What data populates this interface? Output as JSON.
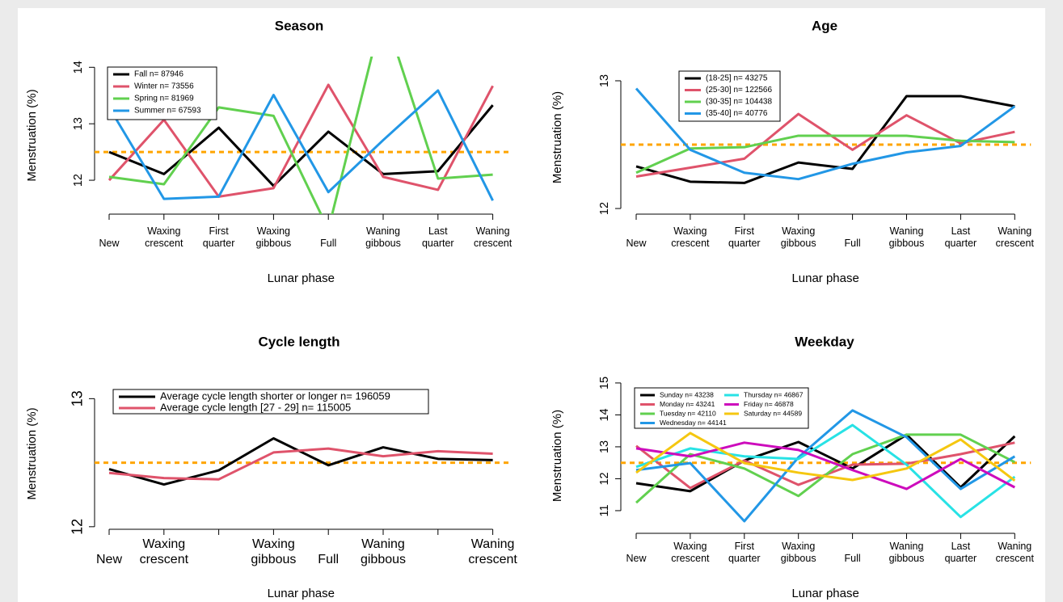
{
  "chart_data": [
    {
      "type": "line",
      "title": "Season",
      "xlabel": "Lunar phase",
      "ylabel": "Menstruation (%)",
      "categories": [
        "New",
        "Waxing crescent",
        "First quarter",
        "Waxing gibbous",
        "Full",
        "Waning gibbous",
        "Last quarter",
        "Waning crescent"
      ],
      "ylim": [
        11.4,
        14.19
      ],
      "yticks": [
        12,
        13,
        14
      ],
      "hline": 12.5,
      "hline_color": "#ffa500",
      "legend_position": "top-left",
      "series": [
        {
          "name": "Fall n= 87946",
          "color": "#000000",
          "values": [
            12.5,
            12.11,
            12.93,
            11.9,
            12.86,
            12.11,
            12.16,
            13.33
          ]
        },
        {
          "name": "Winter n= 73556",
          "color": "#df536b",
          "values": [
            12.0,
            13.07,
            11.71,
            11.86,
            13.69,
            12.06,
            11.83,
            13.67
          ]
        },
        {
          "name": "Spring n= 81969",
          "color": "#61d04f",
          "values": [
            12.06,
            11.93,
            13.29,
            13.14,
            11.13,
            15.0,
            12.03,
            12.1
          ]
        },
        {
          "name": "Summer n= 67593",
          "color": "#2297e6",
          "values": [
            13.29,
            11.67,
            11.71,
            13.51,
            11.79,
            12.71,
            13.59,
            11.64
          ]
        }
      ]
    },
    {
      "type": "line",
      "title": "Age",
      "xlabel": "Lunar phase",
      "ylabel": "Menstruation (%)",
      "categories": [
        "New",
        "Waxing crescent",
        "First quarter",
        "Waxing gibbous",
        "Full",
        "Waning gibbous",
        "Last quarter",
        "Waning crescent"
      ],
      "ylim": [
        11.956,
        13.158
      ],
      "yticks": [
        12,
        13
      ],
      "hline": 12.5,
      "hline_color": "#ffa500",
      "legend_position": "top-left",
      "series": [
        {
          "name": "(18-25] n= 43275",
          "color": "#000000",
          "values": [
            12.33,
            12.21,
            12.2,
            12.36,
            12.31,
            12.88,
            12.88,
            12.8
          ]
        },
        {
          "name": "(25-30] n= 122566",
          "color": "#df536b",
          "values": [
            12.25,
            12.32,
            12.39,
            12.74,
            12.46,
            12.73,
            12.51,
            12.6
          ]
        },
        {
          "name": "(30-35] n= 104438",
          "color": "#61d04f",
          "values": [
            12.28,
            12.47,
            12.48,
            12.57,
            12.57,
            12.57,
            12.53,
            12.52
          ]
        },
        {
          "name": "(35-40] n= 40776",
          "color": "#2297e6",
          "values": [
            12.94,
            12.46,
            12.28,
            12.23,
            12.35,
            12.44,
            12.49,
            12.8
          ]
        }
      ]
    },
    {
      "type": "line",
      "title": "Cycle length",
      "xlabel": "Lunar phase",
      "ylabel": "Menstruation (%)",
      "categories": [
        "New",
        "Waxing crescent",
        null,
        "Waxing gibbous",
        "Full",
        "Waning gibbous",
        null,
        "Waning crescent"
      ],
      "ylim": [
        11.98,
        13.16
      ],
      "yticks": [
        12,
        13
      ],
      "hline": 12.5,
      "hline_color": "#ffa500",
      "legend_position": "top-left",
      "series": [
        {
          "name": "Average cycle length shorter or longer n= 196059",
          "color": "#000000",
          "values": [
            12.45,
            12.33,
            12.44,
            12.69,
            12.48,
            12.62,
            12.53,
            12.52
          ]
        },
        {
          "name": "Average cycle length [27 - 29] n= 115005",
          "color": "#df536b",
          "values": [
            12.42,
            12.38,
            12.37,
            12.58,
            12.61,
            12.55,
            12.59,
            12.57
          ]
        }
      ]
    },
    {
      "type": "line",
      "title": "Weekday",
      "xlabel": "Lunar phase",
      "ylabel": "Menstruation (%)",
      "categories": [
        "New",
        "Waxing crescent",
        "First quarter",
        "Waxing gibbous",
        "Full",
        "Waning gibbous",
        "Last quarter",
        "Waning crescent"
      ],
      "ylim": [
        10.29,
        15.15
      ],
      "yticks": [
        11,
        12,
        13,
        14,
        15
      ],
      "hline": 12.5,
      "hline_color": "#ffa500",
      "legend_position": "top-left",
      "series": [
        {
          "name": "Sunday n= 43238",
          "color": "#000000",
          "values": [
            11.86,
            11.61,
            12.57,
            13.15,
            12.32,
            13.38,
            11.73,
            13.33
          ]
        },
        {
          "name": "Monday n= 43241",
          "color": "#df536b",
          "values": [
            13.03,
            11.71,
            12.57,
            11.81,
            12.44,
            12.47,
            12.77,
            13.13
          ]
        },
        {
          "name": "Tuesday n= 42110",
          "color": "#61d04f",
          "values": [
            11.25,
            12.77,
            12.32,
            11.46,
            12.77,
            13.38,
            13.38,
            12.52
          ]
        },
        {
          "name": "Wednesday n= 44141",
          "color": "#2297e6",
          "values": [
            12.27,
            12.49,
            10.67,
            12.67,
            14.14,
            13.3,
            11.68,
            12.7
          ]
        },
        {
          "name": "Thursday n= 46867",
          "color": "#28e2e5",
          "values": [
            12.37,
            12.95,
            12.7,
            12.62,
            13.68,
            12.44,
            10.8,
            12.06
          ]
        },
        {
          "name": "Friday n= 46878",
          "color": "#cd0bbc",
          "values": [
            12.95,
            12.7,
            13.13,
            12.9,
            12.27,
            11.68,
            12.62,
            11.73
          ]
        },
        {
          "name": "Saturday n= 44589",
          "color": "#f5c710",
          "values": [
            12.19,
            13.43,
            12.49,
            12.19,
            11.96,
            12.32,
            13.23,
            11.94
          ]
        }
      ]
    }
  ]
}
